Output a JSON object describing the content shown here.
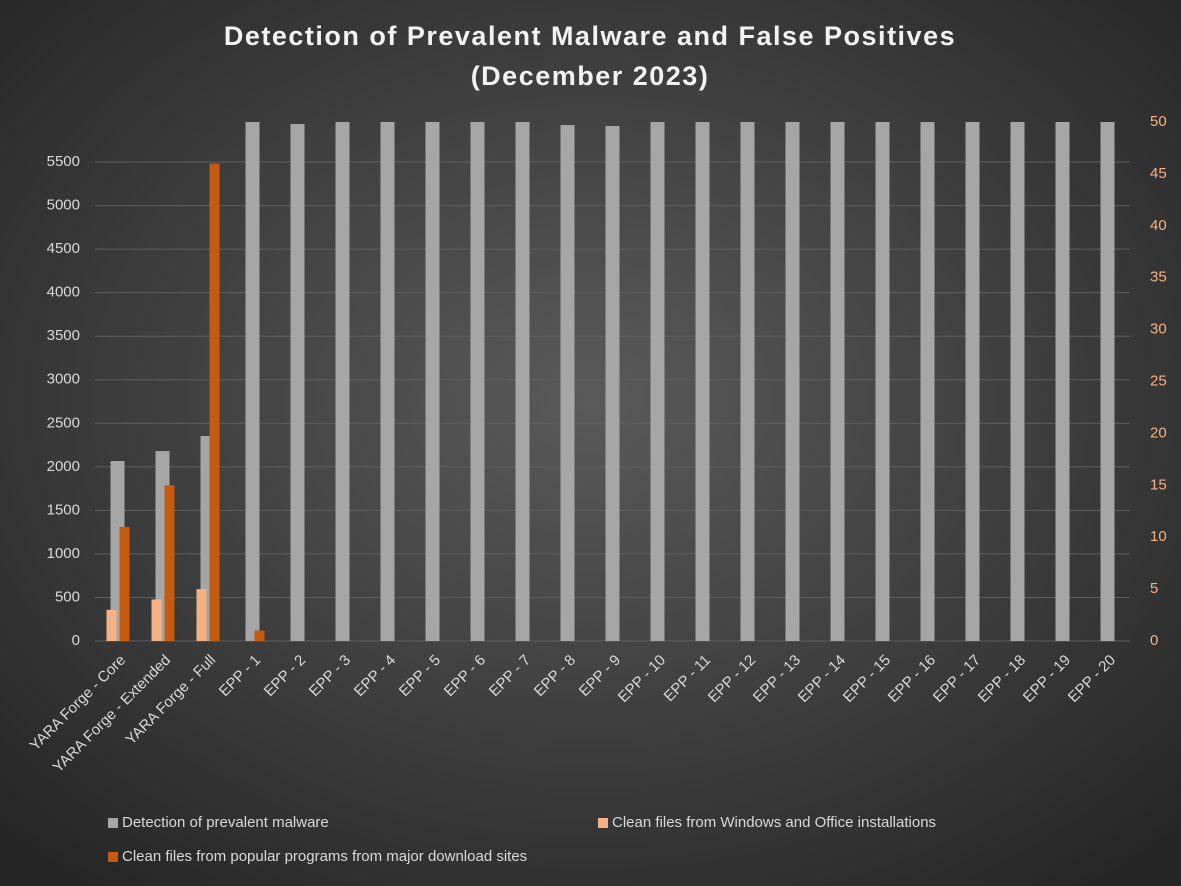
{
  "chart_data": {
    "type": "bar",
    "title": "Detection of Prevalent Malware and False Positives",
    "subtitle": "(December 2023)",
    "categories": [
      "YARA Forge - Core",
      "YARA Forge - Extended",
      "YARA Forge - Full",
      "EPP - 1",
      "EPP - 2",
      "EPP - 3",
      "EPP - 4",
      "EPP - 5",
      "EPP - 6",
      "EPP - 7",
      "EPP - 8",
      "EPP - 9",
      "EPP - 10",
      "EPP - 11",
      "EPP - 12",
      "EPP - 13",
      "EPP - 14",
      "EPP - 15",
      "EPP - 16",
      "EPP - 17",
      "EPP - 18",
      "EPP - 19",
      "EPP - 20"
    ],
    "series": [
      {
        "name": "Detection of prevalent malware",
        "color": "#a6a6a6",
        "values": [
          2067,
          2181,
          2354,
          5960,
          5937,
          5960,
          5960,
          5960,
          5960,
          5960,
          5925,
          5914,
          5960,
          5960,
          5960,
          5960,
          5960,
          5960,
          5960,
          5960,
          5960,
          5960,
          5960
        ]
      },
      {
        "name": "Clean files from Windows and Office installations",
        "color": "#f4b183",
        "axis": "y2",
        "values": [
          3,
          4,
          5,
          0,
          0,
          0,
          0,
          0,
          0,
          0,
          0,
          0,
          0,
          0,
          0,
          0,
          0,
          0,
          0,
          0,
          0,
          0,
          0
        ]
      },
      {
        "name": "Clean files from popular programs from major download sites",
        "color": "#c55a11",
        "axis": "y2",
        "values": [
          11,
          15,
          46,
          1,
          0,
          0,
          0,
          0,
          0,
          0,
          0,
          0,
          0,
          0,
          0,
          0,
          0,
          0,
          0,
          0,
          0,
          0,
          0
        ]
      }
    ],
    "ylim": [
      0,
      5960
    ],
    "yticks": [
      0,
      500,
      1000,
      1500,
      2000,
      2500,
      3000,
      3500,
      4000,
      4500,
      5000,
      5500
    ],
    "y2lim": [
      0,
      50
    ],
    "y2ticks": [
      0,
      5,
      10,
      15,
      20,
      25,
      30,
      35,
      40,
      45,
      50
    ],
    "grid": true,
    "legend": "bottom"
  }
}
